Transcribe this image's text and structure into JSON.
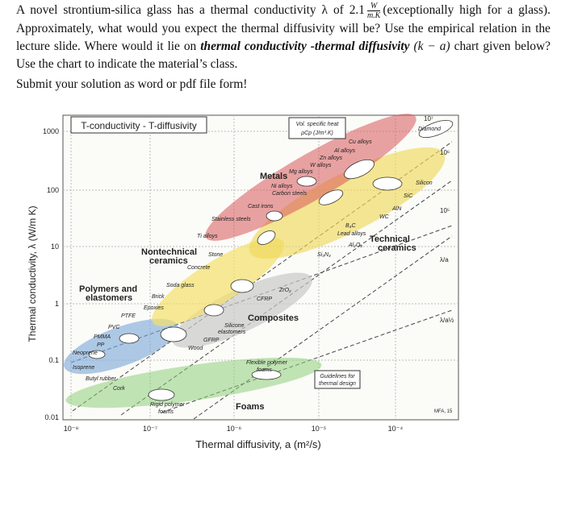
{
  "question": {
    "before": "A novel strontium-silica glass has a thermal conductivity λ of 2.1",
    "unit_numerator": "W",
    "unit_denominator": "m.K",
    "after": "(exceptionally high for a glass). Approximately, what would you expect the thermal diffusivity will be? Use the empirical relation in the lecture slide. Where would it lie on",
    "chart_name": "thermal conductivity -thermal diffusivity",
    "chart_expression": "(k − a)",
    "end": "chart given below? Use the chart to indicate the material’s class.",
    "instruction": "Submit your solution as word or pdf file form!"
  },
  "chart": {
    "title": "T-conductivity - T-diffusivity",
    "heat_capacity": [
      "Vol. specific heat",
      "ρCp (J/m³.K)"
    ],
    "y_axis": "Thermal conductivity, λ (W/m K)",
    "x_axis": "Thermal diffusivity, a (m²/s)",
    "y_ticks": [
      "1000",
      "100",
      "10",
      "1",
      "0.1",
      "0.01"
    ],
    "x_ticks": [
      "10⁻⁸",
      "10⁻⁷",
      "10⁻⁶",
      "10⁻⁵",
      "10⁻⁴"
    ],
    "contours": [
      "10⁷",
      "10⁶",
      "10⁵"
    ],
    "slopes": [
      "λ/a",
      "λ/a½"
    ],
    "credit": "MFA, 15",
    "classes": {
      "metals": "Metals",
      "nontechnical": [
        "Nontechnical",
        "ceramics"
      ],
      "polymers": [
        "Polymers and",
        "elastomers"
      ],
      "composites": "Composites",
      "foams": "Foams",
      "technical": [
        "Technical",
        "ceramics"
      ]
    },
    "guidelines": [
      "Guidelines for",
      "thermal design"
    ],
    "materials": [
      "Diamond",
      "Cu alloys",
      "Al alloys",
      "Zn alloys",
      "W alloys",
      "Mg alloys",
      "Ni alloys",
      "Carbon steels",
      "Cast irons",
      "Stainless steels",
      "Ti alloys",
      "Silicon",
      "SiC",
      "AlN",
      "WC",
      "B₄C",
      "Lead alloys",
      "Al₂O₃",
      "Si₃N₄",
      "ZrO₂",
      "Stone",
      "Concrete",
      "Soda glass",
      "Brick",
      "Epoxies",
      "CFRP",
      "Silicone",
      "elastomers",
      "GFRP",
      "Wood",
      "PTFE",
      "PVC",
      "PMMA",
      "PP",
      "Neoprene",
      "Isoprene",
      "Butyl rubber",
      "Cork",
      "Flexible polymer",
      "foams",
      "Rigid polymer",
      "foams"
    ]
  }
}
